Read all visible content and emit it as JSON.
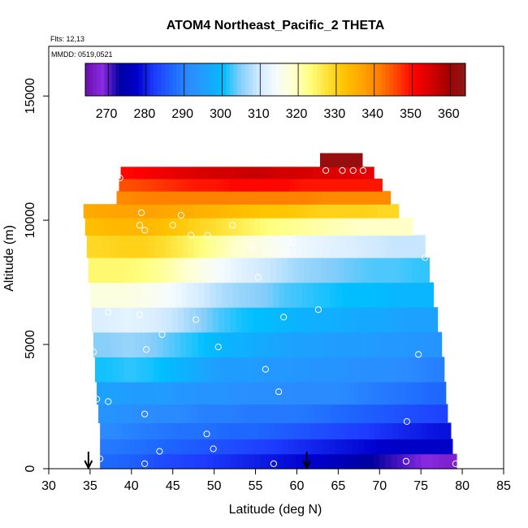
{
  "chart_data": {
    "type": "heatmap",
    "title": "ATOM4 Northeast_Pacific_2 THETA",
    "subtitle_lines": [
      "Flts: 12,13",
      "MMDD: 0519,0521"
    ],
    "xlabel": "Latitude (deg N)",
    "ylabel": "Altitude (m)",
    "xlim": [
      30,
      85
    ],
    "ylim": [
      0,
      17000
    ],
    "x_ticks": [
      30,
      35,
      40,
      45,
      50,
      55,
      60,
      65,
      70,
      75,
      80,
      85
    ],
    "y_ticks": [
      0,
      5000,
      10000,
      15000
    ],
    "colorbar": {
      "range": [
        265,
        365
      ],
      "ticks": [
        270,
        280,
        290,
        300,
        310,
        320,
        330,
        340,
        350,
        360
      ],
      "colors": [
        "#6a0dad",
        "#8a2be2",
        "#0000a0",
        "#0000cd",
        "#1e3cff",
        "#1e66ff",
        "#2b8cff",
        "#1ea0ff",
        "#00bfff",
        "#87cefa",
        "#cfe9ff",
        "#f5fbff",
        "#ffffd0",
        "#ffff80",
        "#ffe135",
        "#ffc300",
        "#ffa500",
        "#ff7f00",
        "#ff4500",
        "#ff0000",
        "#d40000",
        "#a50000",
        "#8b1a1a"
      ]
    },
    "field": {
      "description_rows": [
        {
          "alt_m": 300,
          "lat_range": [
            36.2,
            79.3
          ],
          "theta": [
            288,
            287,
            285,
            284,
            283,
            282,
            281,
            280,
            279,
            278,
            276,
            274,
            272,
            270,
            268
          ]
        },
        {
          "alt_m": 900,
          "lat_range": [
            36.2,
            78.8
          ],
          "theta": [
            290,
            289,
            288,
            287,
            286,
            285,
            284,
            283,
            282,
            281,
            280,
            279,
            278,
            278,
            278
          ]
        },
        {
          "alt_m": 1500,
          "lat_range": [
            36.2,
            78.6
          ],
          "theta": [
            292,
            291,
            290,
            289,
            289,
            288,
            288,
            287,
            286,
            285,
            284,
            283,
            282,
            281,
            280
          ]
        },
        {
          "alt_m": 2200,
          "lat_range": [
            36.0,
            78.2
          ],
          "theta": [
            294,
            293,
            292,
            292,
            291,
            291,
            290,
            290,
            290,
            289,
            288,
            287,
            286,
            285,
            284
          ]
        },
        {
          "alt_m": 3000,
          "lat_range": [
            35.8,
            78.0
          ],
          "theta": [
            297,
            296,
            296,
            295,
            294,
            294,
            293,
            293,
            292,
            292,
            292,
            291,
            290,
            289,
            288
          ]
        },
        {
          "alt_m": 4000,
          "lat_range": [
            35.6,
            77.8
          ],
          "theta": [
            302,
            303,
            302,
            300,
            298,
            296,
            296,
            295,
            295,
            294,
            294,
            293,
            293,
            292,
            291
          ]
        },
        {
          "alt_m": 5000,
          "lat_range": [
            35.4,
            77.5
          ],
          "theta": [
            306,
            307,
            306,
            304,
            302,
            300,
            299,
            298,
            297,
            297,
            296,
            296,
            295,
            295,
            294
          ]
        },
        {
          "alt_m": 6000,
          "lat_range": [
            35.2,
            77.0
          ],
          "theta": [
            312,
            313,
            312,
            310,
            307,
            304,
            302,
            301,
            300,
            299,
            299,
            298,
            298,
            297,
            297
          ]
        },
        {
          "alt_m": 7000,
          "lat_range": [
            35.0,
            76.5
          ],
          "theta": [
            318,
            318,
            317,
            315,
            312,
            309,
            307,
            306,
            304,
            303,
            302,
            301,
            301,
            300,
            300
          ]
        },
        {
          "alt_m": 8000,
          "lat_range": [
            34.8,
            76.0
          ],
          "theta": [
            325,
            325,
            324,
            322,
            319,
            316,
            313,
            311,
            309,
            307,
            306,
            305,
            304,
            304,
            303
          ]
        },
        {
          "alt_m": 9000,
          "lat_range": [
            34.6,
            75.5
          ],
          "theta": [
            330,
            331,
            331,
            329,
            326,
            323,
            320,
            318,
            316,
            314,
            313,
            312,
            311,
            310,
            310
          ]
        },
        {
          "alt_m": 9800,
          "lat_range": [
            34.4,
            74.0
          ],
          "theta": [
            334,
            335,
            335,
            334,
            332,
            330,
            328,
            326,
            324,
            323,
            322,
            321,
            320,
            320,
            320
          ]
        },
        {
          "alt_m": 10400,
          "lat_range": [
            34.2,
            72.3
          ],
          "theta": [
            337,
            338,
            338,
            338,
            337,
            336,
            335,
            334,
            333,
            333,
            332,
            331,
            331,
            331,
            330
          ]
        },
        {
          "alt_m": 10900,
          "lat_range": [
            38.2,
            71.3
          ],
          "theta": [
            341,
            342,
            342,
            342,
            342,
            342,
            342,
            342,
            342,
            342,
            342,
            341,
            341,
            341,
            341
          ]
        },
        {
          "alt_m": 11450,
          "lat_range": [
            38.5,
            70.3
          ],
          "theta": [
            346,
            347,
            348,
            349,
            350,
            350,
            351,
            351,
            351,
            351,
            350,
            350,
            350,
            350,
            350
          ]
        },
        {
          "alt_m": 11900,
          "lat_range": [
            38.7,
            69.3
          ],
          "theta": [
            351,
            352,
            353,
            354,
            355,
            356,
            356,
            357,
            357,
            356,
            356,
            355,
            355,
            355,
            354
          ]
        },
        {
          "alt_m": 12400,
          "lat_range": [
            62.8,
            67.9
          ],
          "theta": [
            363,
            363,
            363,
            363,
            363,
            363,
            363,
            363,
            363,
            363,
            363,
            363,
            363,
            363,
            363
          ]
        }
      ]
    },
    "sample_points": [
      [
        38.6,
        11700
      ],
      [
        63.5,
        12000
      ],
      [
        65.5,
        12000
      ],
      [
        66.8,
        12000
      ],
      [
        68.0,
        12000
      ],
      [
        41.2,
        10300
      ],
      [
        41.0,
        9800
      ],
      [
        41.6,
        9600
      ],
      [
        45.0,
        9800
      ],
      [
        46.0,
        10200
      ],
      [
        47.2,
        9400
      ],
      [
        49.2,
        9400
      ],
      [
        52.2,
        9800
      ],
      [
        54.5,
        9000
      ],
      [
        59.5,
        9100
      ],
      [
        75.5,
        8500
      ],
      [
        55.3,
        7700
      ],
      [
        41.6,
        7300
      ],
      [
        37.2,
        6300
      ],
      [
        41.0,
        6200
      ],
      [
        47.8,
        6000
      ],
      [
        58.4,
        6100
      ],
      [
        62.6,
        6400
      ],
      [
        77.7,
        5800
      ],
      [
        43.7,
        5400
      ],
      [
        41.8,
        4800
      ],
      [
        50.5,
        4900
      ],
      [
        35.4,
        4700
      ],
      [
        74.7,
        4600
      ],
      [
        56.2,
        4000
      ],
      [
        57.8,
        3100
      ],
      [
        35.8,
        2800
      ],
      [
        37.2,
        2700
      ],
      [
        41.6,
        2200
      ],
      [
        73.3,
        1900
      ],
      [
        49.1,
        1400
      ],
      [
        43.4,
        700
      ],
      [
        49.9,
        800
      ],
      [
        36.2,
        400
      ],
      [
        41.6,
        200
      ],
      [
        57.2,
        200
      ],
      [
        73.2,
        300
      ],
      [
        79.2,
        200
      ]
    ],
    "arrows_lat": [
      34.8,
      61.2
    ]
  }
}
